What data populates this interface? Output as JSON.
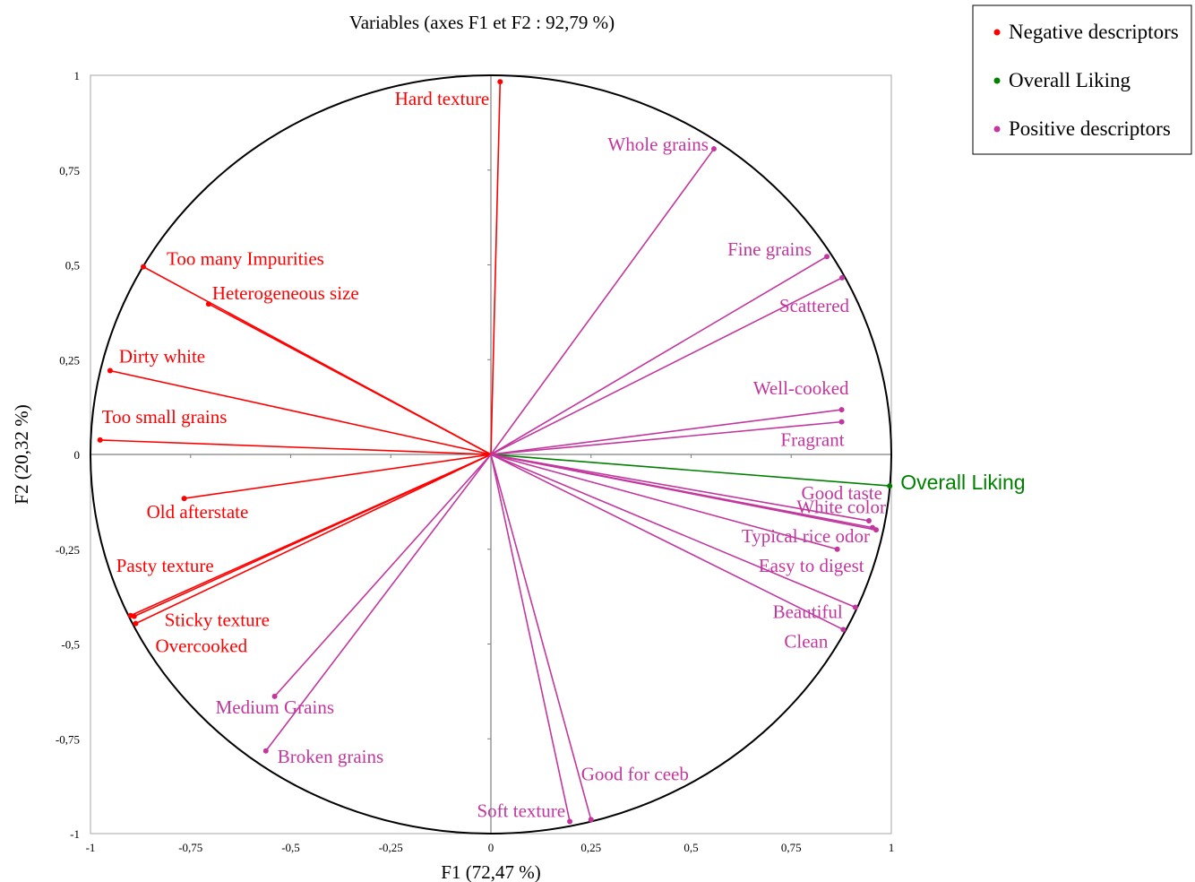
{
  "chart_data": {
    "type": "scatter",
    "subtype": "correlation-circle",
    "title": "Variables (axes F1 et F2 : 92,79 %)",
    "xlabel": "F1 (72,47 %)",
    "ylabel": "F2 (20,32 %)",
    "xlim": [
      -1,
      1
    ],
    "ylim": [
      -1,
      1
    ],
    "x_ticks": [
      -1,
      -0.75,
      -0.5,
      -0.25,
      0,
      0.25,
      0.5,
      0.75,
      1
    ],
    "y_ticks": [
      -1,
      -0.75,
      -0.5,
      -0.25,
      0,
      0.25,
      0.5,
      0.75,
      1
    ],
    "x_tick_labels": [
      "-1",
      "-0,75",
      "-0,5",
      "-0,25",
      "0",
      "0,25",
      "0,5",
      "0,75",
      "1"
    ],
    "y_tick_labels": [
      "-1",
      "-0,75",
      "-0,5",
      "-0,25",
      "0",
      "0,25",
      "0,5",
      "0,75",
      "1"
    ],
    "grid": false,
    "legend_position": "top-right",
    "colors": {
      "negative": "#ff0000",
      "liking": "#008000",
      "positive": "#c2379e"
    },
    "series": [
      {
        "name": "Negative descriptors",
        "color_key": "negative",
        "points": [
          {
            "label": "Hard texture",
            "x": 0.023,
            "y": 0.983
          },
          {
            "label": "Too many Impurities",
            "x": -0.868,
            "y": 0.495
          },
          {
            "label": "Heterogeneous size",
            "x": -0.705,
            "y": 0.397
          },
          {
            "label": "Dirty white",
            "x": -0.951,
            "y": 0.221
          },
          {
            "label": "Too small grains",
            "x": -0.976,
            "y": 0.038
          },
          {
            "label": "Old afterstate",
            "x": -0.766,
            "y": -0.116
          },
          {
            "label": "Pasty texture",
            "x": -0.9,
            "y": -0.425
          },
          {
            "label": "Sticky texture",
            "x": -0.891,
            "y": -0.427
          },
          {
            "label": "Overcooked",
            "x": -0.887,
            "y": -0.446
          }
        ]
      },
      {
        "name": "Overall Liking",
        "color_key": "liking",
        "points": [
          {
            "label": "Overall Liking",
            "x": 0.996,
            "y": -0.083
          }
        ]
      },
      {
        "name": "Positive descriptors",
        "color_key": "positive",
        "points": [
          {
            "label": "Whole grains",
            "x": 0.557,
            "y": 0.806
          },
          {
            "label": "Fine grains",
            "x": 0.839,
            "y": 0.522
          },
          {
            "label": "Scattered",
            "x": 0.877,
            "y": 0.466
          },
          {
            "label": "Well-cooked",
            "x": 0.876,
            "y": 0.118
          },
          {
            "label": "Fragrant",
            "x": 0.876,
            "y": 0.086
          },
          {
            "label": "Good taste",
            "x": 0.944,
            "y": -0.175
          },
          {
            "label": "White color",
            "x": 0.953,
            "y": -0.193
          },
          {
            "label": "Typical rice odor",
            "x": 0.962,
            "y": -0.199
          },
          {
            "label": "Easy to digest",
            "x": 0.865,
            "y": -0.25
          },
          {
            "label": "Beautiful",
            "x": 0.91,
            "y": -0.403
          },
          {
            "label": "Clean",
            "x": 0.88,
            "y": -0.462
          },
          {
            "label": "Medium Grains",
            "x": -0.54,
            "y": -0.638
          },
          {
            "label": "Broken grains",
            "x": -0.562,
            "y": -0.782
          },
          {
            "label": "Good for ceeb",
            "x": 0.25,
            "y": -0.963
          },
          {
            "label": "Soft texture",
            "x": 0.197,
            "y": -0.968
          }
        ]
      }
    ]
  }
}
